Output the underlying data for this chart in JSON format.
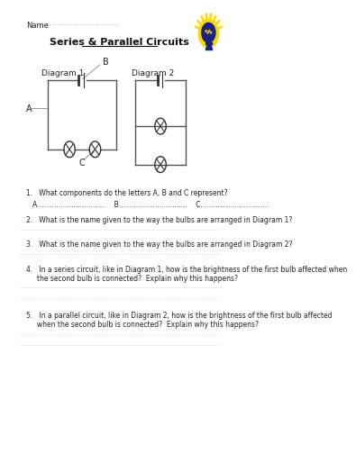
{
  "title": "Series & Parallel Circuits",
  "name_label": "Name",
  "bg_color": "#ffffff",
  "text_color": "#333333",
  "diagram1_label": "Diagram 1",
  "diagram2_label": "Diagram 2",
  "label_A": "A",
  "label_B": "B",
  "label_C": "C",
  "q1": "1.   What components do the letters A, B and C represent?",
  "q1_abc": "A................................    B................................    C................................",
  "q2": "2.   What is the name given to the way the bulbs are arranged in Diagram 1?",
  "q3": "3.   What is the name given to the way the bulbs are arranged in Diagram 2?",
  "q4a": "4.   In a series circuit, like in Diagram 1, how is the brightness of the first bulb affected when",
  "q4b": "     the second bulb is connected?  Explain why this happens?",
  "q5a": "5.   In a parallel circuit, like in Diagram 2, how is the brightness of the first bulb affected",
  "q5b": "     when the second bulb is connected?  Explain why this happens?",
  "wire_color": "#555555",
  "text_dark": "#222222",
  "dot_color": "#aaaaaa",
  "bulb_color": "#333333",
  "title_color": "#111111",
  "bulb_r": 9,
  "lw_wire": 1.0
}
